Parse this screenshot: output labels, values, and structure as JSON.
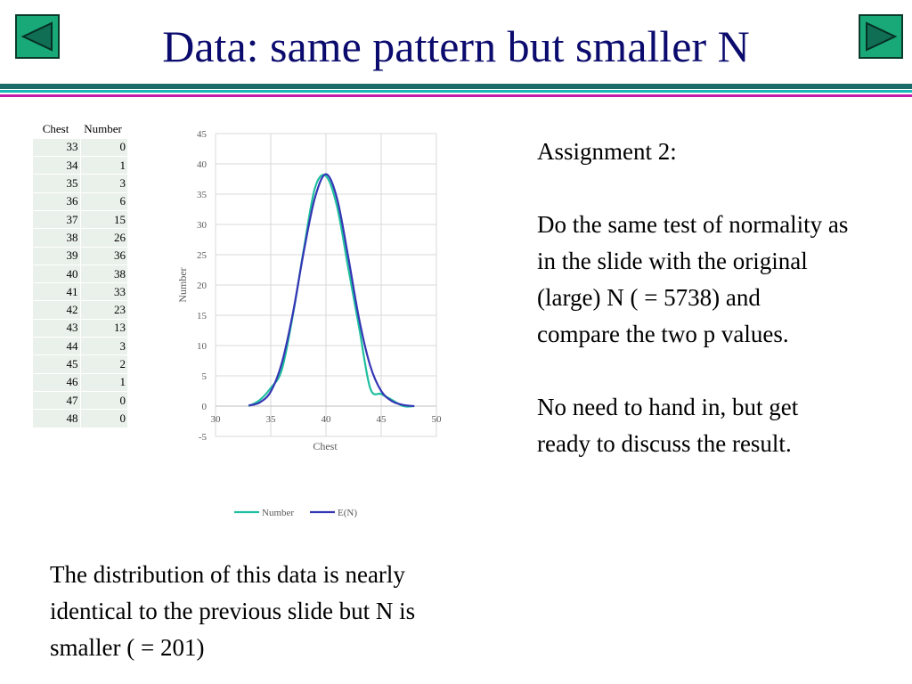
{
  "slide": {
    "title": "Data: same pattern but smaller N",
    "nav": {
      "prev_icon": "triangle-left-icon",
      "next_icon": "triangle-right-icon"
    }
  },
  "table": {
    "headers": [
      "Chest",
      "Number"
    ],
    "rows": [
      [
        "33",
        "0"
      ],
      [
        "34",
        "1"
      ],
      [
        "35",
        "3"
      ],
      [
        "36",
        "6"
      ],
      [
        "37",
        "15"
      ],
      [
        "38",
        "26"
      ],
      [
        "39",
        "36"
      ],
      [
        "40",
        "38"
      ],
      [
        "41",
        "33"
      ],
      [
        "42",
        "23"
      ],
      [
        "43",
        "13"
      ],
      [
        "44",
        "3"
      ],
      [
        "45",
        "2"
      ],
      [
        "46",
        "1"
      ],
      [
        "47",
        "0"
      ],
      [
        "48",
        "0"
      ]
    ]
  },
  "assignment": {
    "heading": "Assignment 2:",
    "body": "Do the same test of normality as in the slide with the original (large) N ( = 5738) and compare the two p values.",
    "note": "No need to hand in, but get ready to discuss the result."
  },
  "caption": "The distribution of this data is nearly identical to the previous slide but N is smaller ( = 201)",
  "chart_data": {
    "type": "line",
    "xlabel": "Chest",
    "ylabel": "Number",
    "xlim": [
      30,
      50
    ],
    "ylim": [
      -5,
      45
    ],
    "x_ticks": [
      30,
      35,
      40,
      45,
      50
    ],
    "y_ticks": [
      -5,
      0,
      5,
      10,
      15,
      20,
      25,
      30,
      35,
      40,
      45
    ],
    "grid": true,
    "legend": "bottom",
    "x": [
      33,
      34,
      35,
      36,
      37,
      38,
      39,
      40,
      41,
      42,
      43,
      44,
      45,
      46,
      47,
      48
    ],
    "series": [
      {
        "name": "Number",
        "color": "#1fbf9f",
        "values": [
          0,
          1,
          3,
          6,
          15,
          26,
          36,
          38,
          33,
          23,
          13,
          3,
          2,
          1,
          0,
          0
        ]
      },
      {
        "name": "E(N)",
        "color": "#3535b5",
        "values": [
          0.1,
          0.6,
          2.4,
          7.1,
          15.3,
          25.6,
          34.4,
          38.3,
          34.3,
          24.8,
          14.4,
          6.7,
          2.5,
          0.8,
          0.2,
          0.0
        ]
      }
    ]
  }
}
